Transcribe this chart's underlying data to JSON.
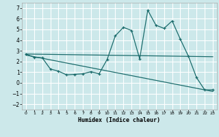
{
  "title": "",
  "xlabel": "Humidex (Indice chaleur)",
  "background_color": "#cce8ea",
  "grid_color": "#ffffff",
  "line_color": "#1a6b6b",
  "xlim": [
    -0.5,
    23.5
  ],
  "ylim": [
    -2.5,
    7.5
  ],
  "xticks": [
    0,
    1,
    2,
    3,
    4,
    5,
    6,
    7,
    8,
    9,
    10,
    11,
    12,
    13,
    14,
    15,
    16,
    17,
    18,
    19,
    20,
    21,
    22,
    23
  ],
  "yticks": [
    -2,
    -1,
    0,
    1,
    2,
    3,
    4,
    5,
    6,
    7
  ],
  "zigzag_x": [
    0,
    1,
    2,
    3,
    4,
    5,
    6,
    7,
    8,
    9,
    10,
    11,
    12,
    13,
    14,
    15,
    16,
    17,
    18,
    19,
    20,
    21,
    22,
    23
  ],
  "zigzag_y": [
    2.7,
    2.4,
    2.35,
    1.3,
    1.1,
    0.75,
    0.8,
    0.85,
    1.05,
    0.85,
    2.2,
    4.4,
    5.2,
    4.9,
    2.25,
    6.8,
    5.4,
    5.1,
    5.8,
    4.1,
    2.5,
    0.5,
    -0.65,
    -0.65
  ],
  "line1_x": [
    0,
    23
  ],
  "line1_y": [
    2.7,
    2.45
  ],
  "line2_x": [
    0,
    23
  ],
  "line2_y": [
    2.6,
    -0.8
  ]
}
